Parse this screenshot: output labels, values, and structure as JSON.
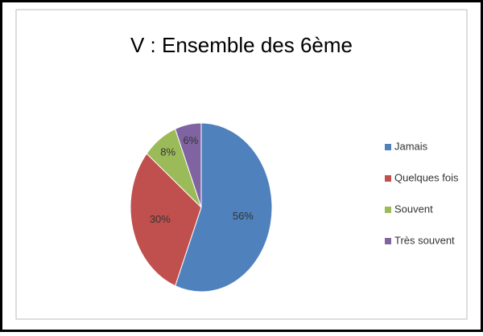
{
  "chart_data": {
    "type": "pie",
    "title": "V : Ensemble des 6ème",
    "categories": [
      "Jamais",
      "Quelques fois",
      "Souvent",
      "Très souvent"
    ],
    "values": [
      56,
      30,
      8,
      6
    ],
    "value_labels": [
      "56%",
      "30%",
      "8%",
      "6%"
    ],
    "colors": [
      "#4f81bd",
      "#c0504d",
      "#9bbb59",
      "#8064a2"
    ],
    "legend": "right"
  }
}
